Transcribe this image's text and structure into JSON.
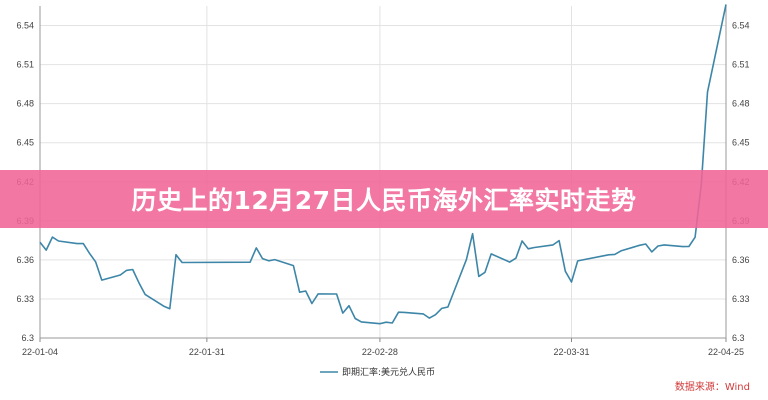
{
  "banner": {
    "title": "历史上的12月27日人民币海外汇率实时走势"
  },
  "source": "数据来源：Wind",
  "colors": {
    "line": "#3d86a8",
    "banner": "#f0649a",
    "source": "#d23b3b"
  },
  "chart_data": {
    "type": "line",
    "title": "",
    "xlabel": "",
    "ylabel": "",
    "ylim": [
      6.3,
      6.555
    ],
    "yticks": [
      "6.3",
      "6.33",
      "6.36",
      "6.39",
      "6.42",
      "6.45",
      "6.48",
      "6.51",
      "6.54"
    ],
    "xticks": [
      "22-01-04",
      "22-01-31",
      "22-02-28",
      "22-03-31",
      "22-04-25"
    ],
    "legend": "bottom-center",
    "grid": true,
    "series": [
      {
        "name": "即期汇率:美元兑人民币",
        "x": [
          "2022-01-04",
          "2022-01-05",
          "2022-01-06",
          "2022-01-07",
          "2022-01-10",
          "2022-01-11",
          "2022-01-12",
          "2022-01-13",
          "2022-01-14",
          "2022-01-17",
          "2022-01-18",
          "2022-01-19",
          "2022-01-20",
          "2022-01-21",
          "2022-01-24",
          "2022-01-25",
          "2022-01-26",
          "2022-01-27",
          "2022-02-07",
          "2022-02-08",
          "2022-02-09",
          "2022-02-10",
          "2022-02-11",
          "2022-02-14",
          "2022-02-15",
          "2022-02-16",
          "2022-02-17",
          "2022-02-18",
          "2022-02-21",
          "2022-02-22",
          "2022-02-23",
          "2022-02-24",
          "2022-02-25",
          "2022-02-28",
          "2022-03-01",
          "2022-03-02",
          "2022-03-03",
          "2022-03-04",
          "2022-03-07",
          "2022-03-08",
          "2022-03-09",
          "2022-03-10",
          "2022-03-11",
          "2022-03-14",
          "2022-03-15",
          "2022-03-16",
          "2022-03-17",
          "2022-03-18",
          "2022-03-21",
          "2022-03-22",
          "2022-03-23",
          "2022-03-24",
          "2022-03-25",
          "2022-03-28",
          "2022-03-29",
          "2022-03-30",
          "2022-03-31",
          "2022-04-01",
          "2022-04-06",
          "2022-04-07",
          "2022-04-08",
          "2022-04-11",
          "2022-04-12",
          "2022-04-13",
          "2022-04-14",
          "2022-04-15",
          "2022-04-18",
          "2022-04-19",
          "2022-04-20",
          "2022-04-21",
          "2022-04-22",
          "2022-04-25"
        ],
        "values": [
          6.3735,
          6.3675,
          6.3775,
          6.3745,
          6.3725,
          6.3725,
          6.3651,
          6.3585,
          6.3445,
          6.3484,
          6.3519,
          6.3526,
          6.3425,
          6.3335,
          6.3245,
          6.3225,
          6.364,
          6.358,
          6.3582,
          6.3692,
          6.361,
          6.3593,
          6.3602,
          6.3556,
          6.3352,
          6.3361,
          6.3265,
          6.3339,
          6.3338,
          6.3191,
          6.3248,
          6.315,
          6.3124,
          6.311,
          6.3121,
          6.3115,
          6.3198,
          6.3197,
          6.3185,
          6.3153,
          6.3179,
          6.3227,
          6.3238,
          6.3602,
          6.3801,
          6.3473,
          6.3505,
          6.3646,
          6.3583,
          6.3613,
          6.3745,
          6.3685,
          6.3695,
          6.3715,
          6.3748,
          6.3513,
          6.343,
          6.3592,
          6.3639,
          6.3642,
          6.3669,
          6.3712,
          6.3722,
          6.3661,
          6.3707,
          6.3715,
          6.3702,
          6.3703,
          6.3774,
          6.418,
          6.4889,
          6.5562
        ]
      }
    ]
  }
}
